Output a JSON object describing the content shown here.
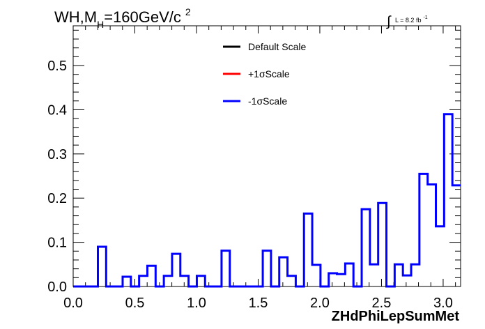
{
  "chart_data": {
    "type": "line",
    "title": {
      "main": "WH,M",
      "sub": "H",
      "rest": "=160GeV/c",
      "sup": "2"
    },
    "lumi": {
      "symbol": "∫",
      "text": "L = 8.2 fb",
      "sup": "-1"
    },
    "xlabel": "ZHdPhiLepSumMet",
    "ylabel": "",
    "xlim": [
      0.0,
      3.1416
    ],
    "ylim": [
      0.0,
      0.59
    ],
    "xticks": [
      "0.0",
      "0.5",
      "1.0",
      "1.5",
      "2.0",
      "2.5",
      "3.0"
    ],
    "yticks": [
      "0.0",
      "0.1",
      "0.2",
      "0.3",
      "0.4",
      "0.5"
    ],
    "bins": 36,
    "legend": {
      "placement": "top-center",
      "entries": [
        {
          "name": "Default Scale",
          "color": "#000000"
        },
        {
          "name": "+1σScale",
          "color": "#ff0000"
        },
        {
          "name": "-1σScale",
          "color": "#0000ff"
        }
      ]
    },
    "series": [
      {
        "name": "-1σScale",
        "color": "#0000ff",
        "values": [
          0,
          0,
          0,
          0.09,
          0,
          0,
          0.022,
          0,
          0.024,
          0.047,
          0,
          0.024,
          0.074,
          0.024,
          0,
          0.024,
          0,
          0,
          0.081,
          0,
          0,
          0,
          0,
          0.081,
          0,
          0.066,
          0.024,
          0,
          0.165,
          0.049,
          0,
          0.03,
          0.028,
          0.052,
          0,
          0.175
        ]
      }
    ],
    "full_values": [
      0,
      0,
      0,
      0.09,
      0,
      0,
      0.022,
      0,
      0.024,
      0.047,
      0,
      0.024,
      0.074,
      0.024,
      0,
      0.024,
      0,
      0,
      0.081,
      0,
      0,
      0,
      0,
      0.081,
      0,
      0.066,
      0.024,
      0,
      0.165,
      0.049,
      0,
      0.03,
      0.028,
      0.052,
      0,
      0.175,
      0.05,
      0.189,
      0,
      0.05,
      0.025,
      0.05,
      0.255,
      0.231,
      0.136,
      0.39,
      0.229
    ]
  }
}
